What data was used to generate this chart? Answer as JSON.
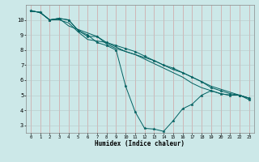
{
  "xlabel": "Humidex (Indice chaleur)",
  "bg_color": "#cce8e8",
  "grid_color_v": "#d09090",
  "grid_color_h": "#b8c8c8",
  "line_color": "#006060",
  "xlim": [
    -0.5,
    23.5
  ],
  "ylim": [
    2.5,
    11.0
  ],
  "xticks": [
    0,
    1,
    2,
    3,
    4,
    5,
    6,
    7,
    8,
    9,
    10,
    11,
    12,
    13,
    14,
    15,
    16,
    17,
    18,
    19,
    20,
    21,
    22,
    23
  ],
  "yticks": [
    3,
    4,
    5,
    6,
    7,
    8,
    9,
    10
  ],
  "series": [
    {
      "x": [
        0,
        1,
        2,
        3,
        4,
        5,
        6,
        7,
        8,
        9,
        10,
        11,
        12,
        13,
        14,
        15,
        16,
        17,
        18,
        19,
        20,
        21,
        22,
        23
      ],
      "y": [
        10.6,
        10.5,
        10.0,
        10.1,
        10.0,
        9.3,
        9.0,
        8.5,
        8.3,
        8.0,
        5.6,
        3.9,
        2.8,
        2.75,
        2.6,
        3.3,
        4.1,
        4.4,
        5.0,
        5.3,
        5.1,
        5.0,
        5.0,
        4.7
      ],
      "marker": true
    },
    {
      "x": [
        0,
        1,
        2,
        3,
        4,
        7,
        8,
        9,
        10,
        11,
        12,
        13,
        14,
        15,
        16,
        17,
        18,
        19,
        20,
        21,
        22,
        23
      ],
      "y": [
        10.6,
        10.5,
        10.0,
        10.1,
        9.6,
        8.9,
        8.4,
        8.1,
        7.9,
        7.7,
        7.5,
        7.3,
        7.0,
        6.7,
        6.5,
        6.2,
        5.9,
        5.6,
        5.4,
        5.2,
        5.0,
        4.8
      ],
      "marker": false
    },
    {
      "x": [
        0,
        1,
        2,
        3,
        4,
        5,
        6,
        7,
        8,
        9,
        10,
        11,
        12,
        13,
        14,
        15,
        16,
        17,
        18,
        19,
        20,
        21,
        22,
        23
      ],
      "y": [
        10.6,
        10.5,
        10.0,
        10.0,
        9.8,
        9.2,
        8.7,
        8.6,
        8.5,
        8.2,
        7.9,
        7.7,
        7.4,
        7.1,
        6.8,
        6.5,
        6.2,
        5.8,
        5.5,
        5.3,
        5.1,
        5.0,
        5.0,
        4.8
      ],
      "marker": false
    },
    {
      "x": [
        0,
        1,
        2,
        3,
        4,
        5,
        6,
        7,
        8,
        9,
        10,
        11,
        12,
        13,
        14,
        15,
        16,
        17,
        18,
        19,
        20,
        21,
        22,
        23
      ],
      "y": [
        10.6,
        10.5,
        10.0,
        10.1,
        10.0,
        9.3,
        8.9,
        8.9,
        8.5,
        8.3,
        8.1,
        7.9,
        7.6,
        7.3,
        7.0,
        6.8,
        6.5,
        6.2,
        5.9,
        5.5,
        5.3,
        5.1,
        5.0,
        4.8
      ],
      "marker": true
    }
  ]
}
